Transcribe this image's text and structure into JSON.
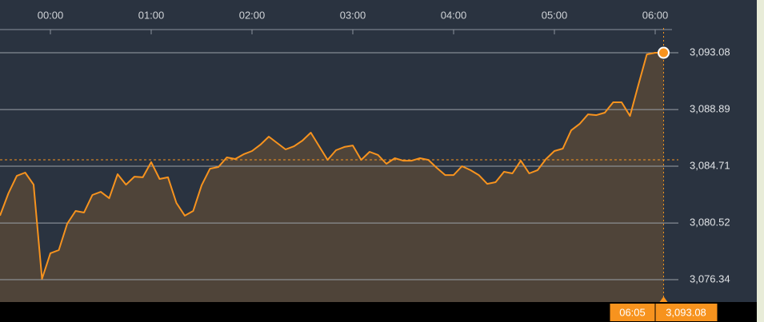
{
  "chart_data": {
    "type": "line",
    "x": [
      "23:30",
      "23:35",
      "23:40",
      "23:45",
      "23:50",
      "23:55",
      "00:00",
      "00:05",
      "00:10",
      "00:15",
      "00:20",
      "00:25",
      "00:30",
      "00:35",
      "00:40",
      "00:45",
      "00:50",
      "00:55",
      "01:00",
      "01:05",
      "01:10",
      "01:15",
      "01:20",
      "01:25",
      "01:30",
      "01:35",
      "01:40",
      "01:45",
      "01:50",
      "01:55",
      "02:00",
      "02:05",
      "02:10",
      "02:15",
      "02:20",
      "02:25",
      "02:30",
      "02:35",
      "02:40",
      "02:45",
      "02:50",
      "02:55",
      "03:00",
      "03:05",
      "03:10",
      "03:15",
      "03:20",
      "03:25",
      "03:30",
      "03:35",
      "03:40",
      "03:45",
      "03:50",
      "03:55",
      "04:00",
      "04:05",
      "04:10",
      "04:15",
      "04:20",
      "04:25",
      "04:30",
      "04:35",
      "04:40",
      "04:45",
      "04:50",
      "04:55",
      "05:00",
      "05:05",
      "05:10",
      "05:15",
      "05:20",
      "05:25",
      "05:30",
      "05:35",
      "05:40",
      "05:45",
      "05:50",
      "05:55",
      "06:00",
      "06:05"
    ],
    "values": [
      3081.06,
      3082.71,
      3084.0,
      3084.24,
      3083.35,
      3076.4,
      3078.29,
      3078.52,
      3080.47,
      3081.41,
      3081.29,
      3082.59,
      3082.82,
      3082.35,
      3084.12,
      3083.35,
      3083.94,
      3083.89,
      3085.01,
      3083.77,
      3083.89,
      3082.0,
      3081.06,
      3081.41,
      3083.3,
      3084.53,
      3084.65,
      3085.36,
      3085.24,
      3085.59,
      3085.83,
      3086.3,
      3086.89,
      3086.42,
      3085.95,
      3086.18,
      3086.6,
      3087.19,
      3086.18,
      3085.18,
      3085.89,
      3086.13,
      3086.24,
      3085.18,
      3085.77,
      3085.54,
      3084.89,
      3085.3,
      3085.12,
      3085.12,
      3085.3,
      3085.18,
      3084.59,
      3084.06,
      3084.06,
      3084.71,
      3084.42,
      3084.06,
      3083.41,
      3083.53,
      3084.3,
      3084.18,
      3085.12,
      3084.18,
      3084.42,
      3085.24,
      3085.83,
      3086.01,
      3087.36,
      3087.83,
      3088.54,
      3088.48,
      3088.66,
      3089.43,
      3089.43,
      3088.42,
      3090.72,
      3092.96,
      3093.08,
      3093.08
    ],
    "color": "#f7931e",
    "xlim": [
      "23:30",
      "06:10"
    ],
    "xticks": [
      "00:00",
      "01:00",
      "02:00",
      "03:00",
      "04:00",
      "05:00",
      "06:00"
    ],
    "ylim": [
      3074.69,
      3094.91
    ],
    "yticks": [
      {
        "value": 3076.34,
        "label": "3,076.34"
      },
      {
        "value": 3080.52,
        "label": "3,080.52"
      },
      {
        "value": 3084.71,
        "label": "3,084.71"
      },
      {
        "value": 3088.89,
        "label": "3,088.89"
      },
      {
        "value": 3093.08,
        "label": "3,093.08"
      }
    ],
    "grid": true,
    "reference_line": 3085.18,
    "cursor": {
      "x": "06:05",
      "label": "3,093.08"
    }
  }
}
